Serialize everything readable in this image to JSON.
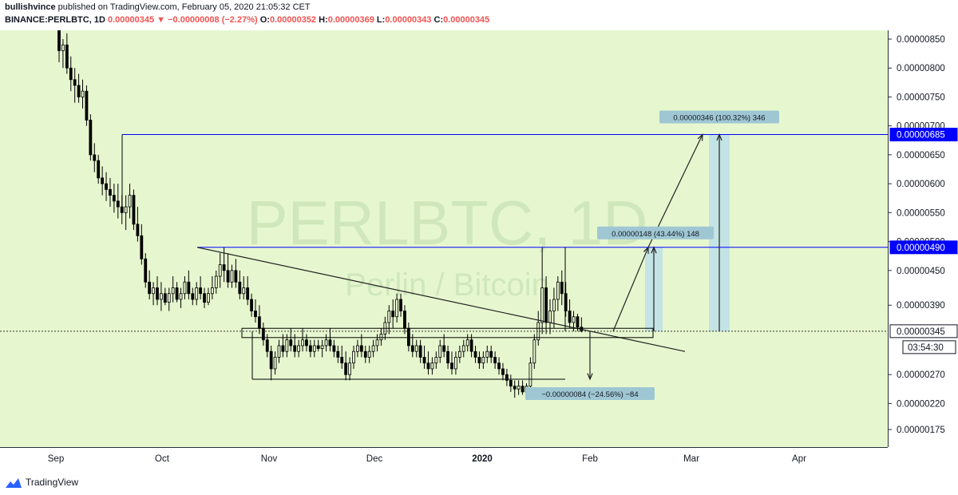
{
  "header": {
    "publisher": "bullishvince",
    "published_text": "published on TradingView.com, February 05, 2020 21:05:32 CET",
    "symbol": "BINANCE:PERLBTC, 1D",
    "last": "0.00000345",
    "change": "▼ −0.00000008 (−2.27%)",
    "o_label": "O:",
    "o_value": "0.00000352",
    "h_label": "H:",
    "h_value": "0.00000369",
    "l_label": "L:",
    "l_value": "0.00000343",
    "c_label": "C:",
    "c_value": "0.00000345"
  },
  "watermark": {
    "main": "PERLBTC, 1D",
    "sub": "Perlin / Bitcoin"
  },
  "countdown": "03:54:30",
  "footer": {
    "brand": "TradingView"
  },
  "colors": {
    "up": "#000000",
    "down": "#000000",
    "plot_bg": "#e6f7cf",
    "blue_level": "#0000ff",
    "measure_fill": "#b8dceb"
  },
  "chart_data": {
    "type": "candlestick",
    "title": "",
    "x_ticks": [
      "Sep",
      "Oct",
      "Nov",
      "Dec",
      "2020",
      "Feb",
      "Mar",
      "Apr"
    ],
    "y_ticks": [
      "0.00000850",
      "0.00000800",
      "0.00000750",
      "0.00000700",
      "0.00000650",
      "0.00000600",
      "0.00000550",
      "0.00000500",
      "0.00000450",
      "0.00000390",
      "0.00000345",
      "0.00000270",
      "0.00000220",
      "0.00000175"
    ],
    "y_range": [
      1.5e-06,
      8.8e-06
    ],
    "price_labels": [
      {
        "value": "0.00000685",
        "kind": "level"
      },
      {
        "value": "0.00000490",
        "kind": "level"
      },
      {
        "value": "0.00000345",
        "kind": "last"
      }
    ],
    "measurements": [
      {
        "label": "0.00000346 (100.32%) 346"
      },
      {
        "label": "0.00000148 (43.44%) 148"
      },
      {
        "label": "−0.00000084 (−24.56%) −84"
      }
    ],
    "candles": [
      [
        8.7e-06,
        8.8e-06,
        8.1e-06,
        8.3e-06
      ],
      [
        8.3e-06,
        8.5e-06,
        8e-06,
        8.4e-06
      ],
      [
        8.4e-06,
        8.6e-06,
        7.9e-06,
        8e-06
      ],
      [
        8e-06,
        8.2e-06,
        7.6e-06,
        7.8e-06
      ],
      [
        7.8e-06,
        8e-06,
        7.4e-06,
        7.7e-06
      ],
      [
        7.7e-06,
        7.9e-06,
        7.4e-06,
        7.5e-06
      ],
      [
        7.5e-06,
        7.8e-06,
        7.3e-06,
        7.6e-06
      ],
      [
        7.6e-06,
        7.7e-06,
        7e-06,
        7.1e-06
      ],
      [
        7.1e-06,
        7.2e-06,
        6.4e-06,
        6.5e-06
      ],
      [
        6.5e-06,
        6.7e-06,
        6.2e-06,
        6.4e-06
      ],
      [
        6.4e-06,
        6.5e-06,
        6e-06,
        6.1e-06
      ],
      [
        6.1e-06,
        6.3e-06,
        5.8e-06,
        6e-06
      ],
      [
        6e-06,
        6.2e-06,
        5.7e-06,
        5.9e-06
      ],
      [
        5.9e-06,
        6.1e-06,
        5.6e-06,
        5.8e-06
      ],
      [
        5.8e-06,
        6e-06,
        5.5e-06,
        5.7e-06
      ],
      [
        5.7e-06,
        6e-06,
        5.4e-06,
        5.6e-06
      ],
      [
        5.6e-06,
        5.8e-06,
        5.3e-06,
        5.5e-06
      ],
      [
        5.5e-06,
        5.8e-06,
        5.2e-06,
        5.6e-06
      ],
      [
        5.6e-06,
        6e-06,
        5.4e-06,
        5.8e-06
      ],
      [
        5.8e-06,
        5.9e-06,
        5.2e-06,
        5.3e-06
      ],
      [
        5.3e-06,
        5.6e-06,
        5e-06,
        5.1e-06
      ],
      [
        5.1e-06,
        5.3e-06,
        4.6e-06,
        4.7e-06
      ],
      [
        4.7e-06,
        4.8e-06,
        4.2e-06,
        4.3e-06
      ],
      [
        4.3e-06,
        4.5e-06,
        4e-06,
        4.1e-06
      ],
      [
        4.1e-06,
        4.3e-06,
        3.9e-06,
        4.2e-06
      ],
      [
        4.2e-06,
        4.4e-06,
        3.9e-06,
        4e-06
      ],
      [
        4e-06,
        4.3e-06,
        3.8e-06,
        4.1e-06
      ],
      [
        4.1e-06,
        4.2e-06,
        3.9e-06,
        3.95e-06
      ],
      [
        3.95e-06,
        4.2e-06,
        3.8e-06,
        4.1e-06
      ],
      [
        4.1e-06,
        4.4e-06,
        3.95e-06,
        4.2e-06
      ],
      [
        4.2e-06,
        4.3e-06,
        3.95e-06,
        4e-06
      ],
      [
        4e-06,
        4.2e-06,
        3.85e-06,
        4.1e-06
      ],
      [
        4.1e-06,
        4.4e-06,
        4e-06,
        4.3e-06
      ],
      [
        4.3e-06,
        4.5e-06,
        4e-06,
        4.1e-06
      ],
      [
        4.1e-06,
        4.2e-06,
        3.9e-06,
        4e-06
      ],
      [
        4e-06,
        4.3e-06,
        3.9e-06,
        4.2e-06
      ],
      [
        4.2e-06,
        4.4e-06,
        4e-06,
        4.1e-06
      ],
      [
        4.1e-06,
        4.2e-06,
        3.85e-06,
        3.95e-06
      ],
      [
        3.95e-06,
        4.2e-06,
        3.9e-06,
        4.1e-06
      ],
      [
        4.1e-06,
        4.4e-06,
        4e-06,
        4.2e-06
      ],
      [
        4.2e-06,
        4.5e-06,
        4.1e-06,
        4.4e-06
      ],
      [
        4.4e-06,
        4.8e-06,
        4.2e-06,
        4.6e-06
      ],
      [
        4.6e-06,
        4.9e-06,
        4.3e-06,
        4.5e-06
      ],
      [
        4.5e-06,
        4.8e-06,
        4.2e-06,
        4.3e-06
      ],
      [
        4.3e-06,
        4.6e-06,
        4.2e-06,
        4.5e-06
      ],
      [
        4.5e-06,
        4.7e-06,
        4.2e-06,
        4.3e-06
      ],
      [
        4.3e-06,
        4.5e-06,
        4e-06,
        4.1e-06
      ],
      [
        4.1e-06,
        4.4e-06,
        4e-06,
        4.2e-06
      ],
      [
        4.2e-06,
        4.4e-06,
        3.9e-06,
        4e-06
      ],
      [
        4e-06,
        4.1e-06,
        3.7e-06,
        3.8e-06
      ],
      [
        3.8e-06,
        4e-06,
        3.6e-06,
        3.7e-06
      ],
      [
        3.7e-06,
        3.9e-06,
        3.4e-06,
        3.5e-06
      ],
      [
        3.5e-06,
        3.6e-06,
        3.2e-06,
        3.3e-06
      ],
      [
        3.3e-06,
        3.4e-06,
        3e-06,
        3.1e-06
      ],
      [
        3.1e-06,
        3.2e-06,
        2.6e-06,
        2.8e-06
      ],
      [
        2.8e-06,
        3.1e-06,
        2.7e-06,
        3e-06
      ],
      [
        3e-06,
        3.3e-06,
        2.9e-06,
        3.2e-06
      ],
      [
        3.2e-06,
        3.4e-06,
        3e-06,
        3.1e-06
      ],
      [
        3.1e-06,
        3.4e-06,
        3e-06,
        3.3e-06
      ],
      [
        3.3e-06,
        3.5e-06,
        3.1e-06,
        3.2e-06
      ],
      [
        3.2e-06,
        3.4e-06,
        3e-06,
        3.1e-06
      ],
      [
        3.1e-06,
        3.3e-06,
        3e-06,
        3.2e-06
      ],
      [
        3.2e-06,
        3.5e-06,
        3.1e-06,
        3.3e-06
      ],
      [
        3.3e-06,
        3.4e-06,
        3.1e-06,
        3.2e-06
      ],
      [
        3.2e-06,
        3.3e-06,
        3e-06,
        3.1e-06
      ],
      [
        3.1e-06,
        3.3e-06,
        3e-06,
        3.2e-06
      ],
      [
        3.2e-06,
        3.3e-06,
        3.1e-06,
        3.15e-06
      ],
      [
        3.15e-06,
        3.3e-06,
        3e-06,
        3.2e-06
      ],
      [
        3.2e-06,
        3.4e-06,
        3.1e-06,
        3.3e-06
      ],
      [
        3.3e-06,
        3.5e-06,
        3.1e-06,
        3.2e-06
      ],
      [
        3.2e-06,
        3.3e-06,
        3e-06,
        3.1e-06
      ],
      [
        3.1e-06,
        3.2e-06,
        2.9e-06,
        3e-06
      ],
      [
        3e-06,
        3.2e-06,
        2.8e-06,
        2.9e-06
      ],
      [
        2.9e-06,
        3.1e-06,
        2.6e-06,
        2.7e-06
      ],
      [
        2.7e-06,
        3e-06,
        2.6e-06,
        2.9e-06
      ],
      [
        2.9e-06,
        3.2e-06,
        2.8e-06,
        3.1e-06
      ],
      [
        3.1e-06,
        3.3e-06,
        3e-06,
        3.2e-06
      ],
      [
        3.2e-06,
        3.4e-06,
        3e-06,
        3.1e-06
      ],
      [
        3.1e-06,
        3.2e-06,
        2.9e-06,
        3e-06
      ],
      [
        3e-06,
        3.2e-06,
        2.9e-06,
        3.1e-06
      ],
      [
        3.1e-06,
        3.3e-06,
        3e-06,
        3.2e-06
      ],
      [
        3.2e-06,
        3.4e-06,
        3.1e-06,
        3.3e-06
      ],
      [
        3.3e-06,
        3.5e-06,
        3.2e-06,
        3.4e-06
      ],
      [
        3.4e-06,
        3.7e-06,
        3.3e-06,
        3.6e-06
      ],
      [
        3.6e-06,
        3.9e-06,
        3.4e-06,
        3.8e-06
      ],
      [
        3.8e-06,
        4e-06,
        3.5e-06,
        3.7e-06
      ],
      [
        3.7e-06,
        4.1e-06,
        3.6e-06,
        4e-06
      ],
      [
        4e-06,
        4.1e-06,
        3.7e-06,
        3.8e-06
      ],
      [
        3.8e-06,
        3.9e-06,
        3.4e-06,
        3.5e-06
      ],
      [
        3.5e-06,
        3.6e-06,
        3.1e-06,
        3.2e-06
      ],
      [
        3.2e-06,
        3.4e-06,
        3e-06,
        3.1e-06
      ],
      [
        3.1e-06,
        3.3e-06,
        3e-06,
        3.2e-06
      ],
      [
        3.2e-06,
        3.3e-06,
        2.9e-06,
        3e-06
      ],
      [
        3e-06,
        3.2e-06,
        2.8e-06,
        2.9e-06
      ],
      [
        2.9e-06,
        3.1e-06,
        2.7e-06,
        2.8e-06
      ],
      [
        2.8e-06,
        3e-06,
        2.7e-06,
        2.9e-06
      ],
      [
        2.9e-06,
        3.1e-06,
        2.8e-06,
        3e-06
      ],
      [
        3e-06,
        3.3e-06,
        2.9e-06,
        3.2e-06
      ],
      [
        3.2e-06,
        3.4e-06,
        3e-06,
        3.1e-06
      ],
      [
        3.1e-06,
        3.2e-06,
        2.8e-06,
        2.9e-06
      ],
      [
        2.9e-06,
        3.1e-06,
        2.7e-06,
        2.8e-06
      ],
      [
        2.8e-06,
        3.1e-06,
        2.7e-06,
        3e-06
      ],
      [
        3e-06,
        3.2e-06,
        2.9e-06,
        3.1e-06
      ],
      [
        3.1e-06,
        3.3e-06,
        3e-06,
        3.2e-06
      ],
      [
        3.2e-06,
        3.4e-06,
        3.1e-06,
        3.3e-06
      ],
      [
        3.3e-06,
        3.4e-06,
        3e-06,
        3.1e-06
      ],
      [
        3.1e-06,
        3.2e-06,
        2.9e-06,
        3e-06
      ],
      [
        3e-06,
        3.1e-06,
        2.8e-06,
        2.9e-06
      ],
      [
        2.9e-06,
        3.1e-06,
        2.8e-06,
        3e-06
      ],
      [
        3e-06,
        3.2e-06,
        2.9e-06,
        3.1e-06
      ],
      [
        3.1e-06,
        3.2e-06,
        2.9e-06,
        3e-06
      ],
      [
        3e-06,
        3.1e-06,
        2.8e-06,
        2.9e-06
      ],
      [
        2.9e-06,
        3e-06,
        2.7e-06,
        2.8e-06
      ],
      [
        2.8e-06,
        2.9e-06,
        2.6e-06,
        2.7e-06
      ],
      [
        2.7e-06,
        2.8e-06,
        2.5e-06,
        2.6e-06
      ],
      [
        2.6e-06,
        2.7e-06,
        2.4e-06,
        2.5e-06
      ],
      [
        2.5e-06,
        2.6e-06,
        2.3e-06,
        2.45e-06
      ],
      [
        2.45e-06,
        2.6e-06,
        2.35e-06,
        2.5e-06
      ],
      [
        2.5e-06,
        2.6e-06,
        2.35e-06,
        2.4e-06
      ],
      [
        2.4e-06,
        2.55e-06,
        2.35e-06,
        2.5e-06
      ],
      [
        2.5e-06,
        3e-06,
        2.45e-06,
        2.9e-06
      ],
      [
        2.9e-06,
        3.4e-06,
        2.8e-06,
        3.3e-06
      ],
      [
        3.3e-06,
        3.8e-06,
        3.2e-06,
        3.6e-06
      ],
      [
        3.6e-06,
        4.9e-06,
        3.4e-06,
        4.2e-06
      ],
      [
        4.2e-06,
        4.4e-06,
        3.4e-06,
        3.6e-06
      ],
      [
        3.6e-06,
        4e-06,
        3.4e-06,
        3.8e-06
      ],
      [
        3.8e-06,
        4.2e-06,
        3.5e-06,
        4e-06
      ],
      [
        4e-06,
        4.4e-06,
        3.8e-06,
        4.3e-06
      ],
      [
        4.3e-06,
        4.5e-06,
        3.9e-06,
        4.1e-06
      ],
      [
        4.1e-06,
        4.3e-06,
        3.7e-06,
        3.8e-06
      ],
      [
        3.8e-06,
        4e-06,
        3.5e-06,
        3.6e-06
      ],
      [
        3.6e-06,
        3.8e-06,
        3.45e-06,
        3.7e-06
      ],
      [
        3.7e-06,
        3.75e-06,
        3.45e-06,
        3.52e-06
      ],
      [
        3.52e-06,
        3.69e-06,
        3.43e-06,
        3.45e-06
      ]
    ]
  }
}
